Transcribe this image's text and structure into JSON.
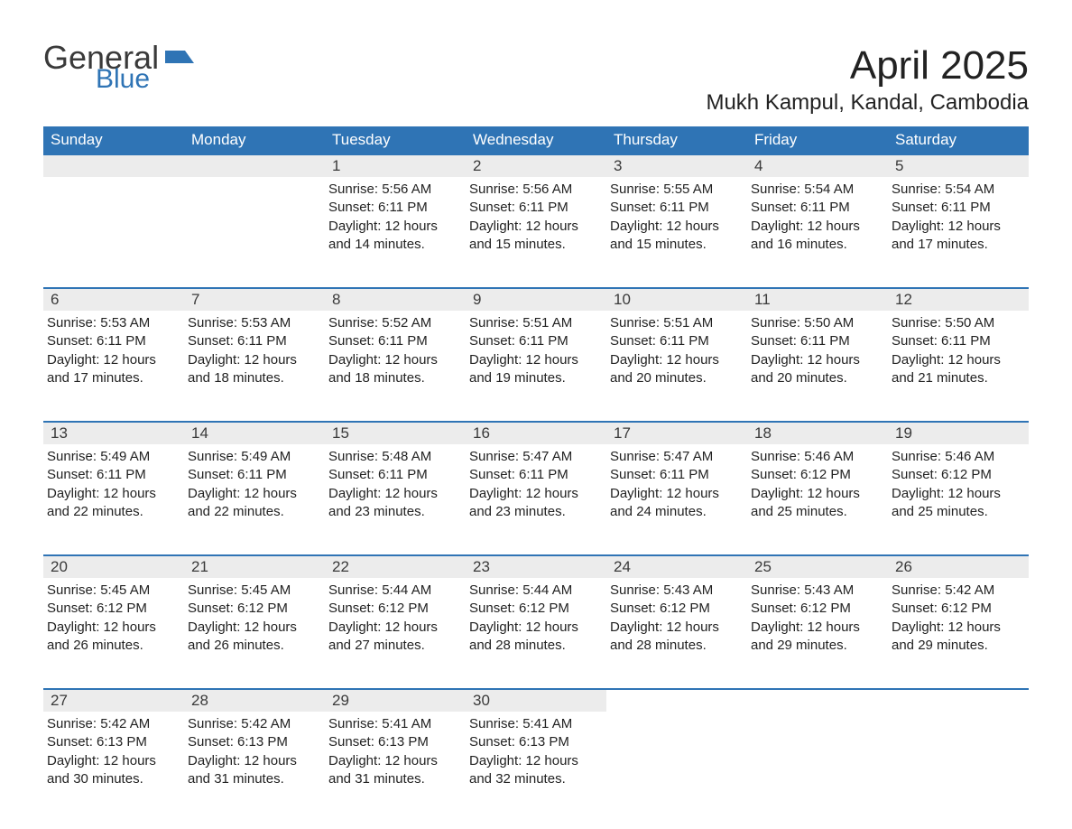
{
  "logo": {
    "text_top": "General",
    "text_bottom": "Blue",
    "text_top_color": "#3a3a3a",
    "text_bottom_color": "#2f74b5",
    "flag_color": "#2f74b5"
  },
  "header": {
    "month_title": "April 2025",
    "location": "Mukh Kampul, Kandal, Cambodia"
  },
  "theme": {
    "header_bg": "#2f74b5",
    "header_fg": "#ffffff",
    "daynum_bg": "#ececec",
    "daynum_fg": "#3a3a3a",
    "rule_color": "#2f74b5",
    "body_fg": "#222222",
    "page_bg": "#ffffff",
    "header_fontsize": 17,
    "daynum_fontsize": 17,
    "body_fontsize": 15,
    "month_title_fontsize": 44,
    "location_fontsize": 24
  },
  "weekdays": [
    "Sunday",
    "Monday",
    "Tuesday",
    "Wednesday",
    "Thursday",
    "Friday",
    "Saturday"
  ],
  "weeks": [
    [
      {
        "blank": true
      },
      {
        "blank": true
      },
      {
        "num": "1",
        "sunrise": "Sunrise: 5:56 AM",
        "sunset": "Sunset: 6:11 PM",
        "daylight": "Daylight: 12 hours and 14 minutes."
      },
      {
        "num": "2",
        "sunrise": "Sunrise: 5:56 AM",
        "sunset": "Sunset: 6:11 PM",
        "daylight": "Daylight: 12 hours and 15 minutes."
      },
      {
        "num": "3",
        "sunrise": "Sunrise: 5:55 AM",
        "sunset": "Sunset: 6:11 PM",
        "daylight": "Daylight: 12 hours and 15 minutes."
      },
      {
        "num": "4",
        "sunrise": "Sunrise: 5:54 AM",
        "sunset": "Sunset: 6:11 PM",
        "daylight": "Daylight: 12 hours and 16 minutes."
      },
      {
        "num": "5",
        "sunrise": "Sunrise: 5:54 AM",
        "sunset": "Sunset: 6:11 PM",
        "daylight": "Daylight: 12 hours and 17 minutes."
      }
    ],
    [
      {
        "num": "6",
        "sunrise": "Sunrise: 5:53 AM",
        "sunset": "Sunset: 6:11 PM",
        "daylight": "Daylight: 12 hours and 17 minutes."
      },
      {
        "num": "7",
        "sunrise": "Sunrise: 5:53 AM",
        "sunset": "Sunset: 6:11 PM",
        "daylight": "Daylight: 12 hours and 18 minutes."
      },
      {
        "num": "8",
        "sunrise": "Sunrise: 5:52 AM",
        "sunset": "Sunset: 6:11 PM",
        "daylight": "Daylight: 12 hours and 18 minutes."
      },
      {
        "num": "9",
        "sunrise": "Sunrise: 5:51 AM",
        "sunset": "Sunset: 6:11 PM",
        "daylight": "Daylight: 12 hours and 19 minutes."
      },
      {
        "num": "10",
        "sunrise": "Sunrise: 5:51 AM",
        "sunset": "Sunset: 6:11 PM",
        "daylight": "Daylight: 12 hours and 20 minutes."
      },
      {
        "num": "11",
        "sunrise": "Sunrise: 5:50 AM",
        "sunset": "Sunset: 6:11 PM",
        "daylight": "Daylight: 12 hours and 20 minutes."
      },
      {
        "num": "12",
        "sunrise": "Sunrise: 5:50 AM",
        "sunset": "Sunset: 6:11 PM",
        "daylight": "Daylight: 12 hours and 21 minutes."
      }
    ],
    [
      {
        "num": "13",
        "sunrise": "Sunrise: 5:49 AM",
        "sunset": "Sunset: 6:11 PM",
        "daylight": "Daylight: 12 hours and 22 minutes."
      },
      {
        "num": "14",
        "sunrise": "Sunrise: 5:49 AM",
        "sunset": "Sunset: 6:11 PM",
        "daylight": "Daylight: 12 hours and 22 minutes."
      },
      {
        "num": "15",
        "sunrise": "Sunrise: 5:48 AM",
        "sunset": "Sunset: 6:11 PM",
        "daylight": "Daylight: 12 hours and 23 minutes."
      },
      {
        "num": "16",
        "sunrise": "Sunrise: 5:47 AM",
        "sunset": "Sunset: 6:11 PM",
        "daylight": "Daylight: 12 hours and 23 minutes."
      },
      {
        "num": "17",
        "sunrise": "Sunrise: 5:47 AM",
        "sunset": "Sunset: 6:11 PM",
        "daylight": "Daylight: 12 hours and 24 minutes."
      },
      {
        "num": "18",
        "sunrise": "Sunrise: 5:46 AM",
        "sunset": "Sunset: 6:12 PM",
        "daylight": "Daylight: 12 hours and 25 minutes."
      },
      {
        "num": "19",
        "sunrise": "Sunrise: 5:46 AM",
        "sunset": "Sunset: 6:12 PM",
        "daylight": "Daylight: 12 hours and 25 minutes."
      }
    ],
    [
      {
        "num": "20",
        "sunrise": "Sunrise: 5:45 AM",
        "sunset": "Sunset: 6:12 PM",
        "daylight": "Daylight: 12 hours and 26 minutes."
      },
      {
        "num": "21",
        "sunrise": "Sunrise: 5:45 AM",
        "sunset": "Sunset: 6:12 PM",
        "daylight": "Daylight: 12 hours and 26 minutes."
      },
      {
        "num": "22",
        "sunrise": "Sunrise: 5:44 AM",
        "sunset": "Sunset: 6:12 PM",
        "daylight": "Daylight: 12 hours and 27 minutes."
      },
      {
        "num": "23",
        "sunrise": "Sunrise: 5:44 AM",
        "sunset": "Sunset: 6:12 PM",
        "daylight": "Daylight: 12 hours and 28 minutes."
      },
      {
        "num": "24",
        "sunrise": "Sunrise: 5:43 AM",
        "sunset": "Sunset: 6:12 PM",
        "daylight": "Daylight: 12 hours and 28 minutes."
      },
      {
        "num": "25",
        "sunrise": "Sunrise: 5:43 AM",
        "sunset": "Sunset: 6:12 PM",
        "daylight": "Daylight: 12 hours and 29 minutes."
      },
      {
        "num": "26",
        "sunrise": "Sunrise: 5:42 AM",
        "sunset": "Sunset: 6:12 PM",
        "daylight": "Daylight: 12 hours and 29 minutes."
      }
    ],
    [
      {
        "num": "27",
        "sunrise": "Sunrise: 5:42 AM",
        "sunset": "Sunset: 6:13 PM",
        "daylight": "Daylight: 12 hours and 30 minutes."
      },
      {
        "num": "28",
        "sunrise": "Sunrise: 5:42 AM",
        "sunset": "Sunset: 6:13 PM",
        "daylight": "Daylight: 12 hours and 31 minutes."
      },
      {
        "num": "29",
        "sunrise": "Sunrise: 5:41 AM",
        "sunset": "Sunset: 6:13 PM",
        "daylight": "Daylight: 12 hours and 31 minutes."
      },
      {
        "num": "30",
        "sunrise": "Sunrise: 5:41 AM",
        "sunset": "Sunset: 6:13 PM",
        "daylight": "Daylight: 12 hours and 32 minutes."
      },
      {
        "blank": true
      },
      {
        "blank": true
      },
      {
        "blank": true
      }
    ]
  ]
}
